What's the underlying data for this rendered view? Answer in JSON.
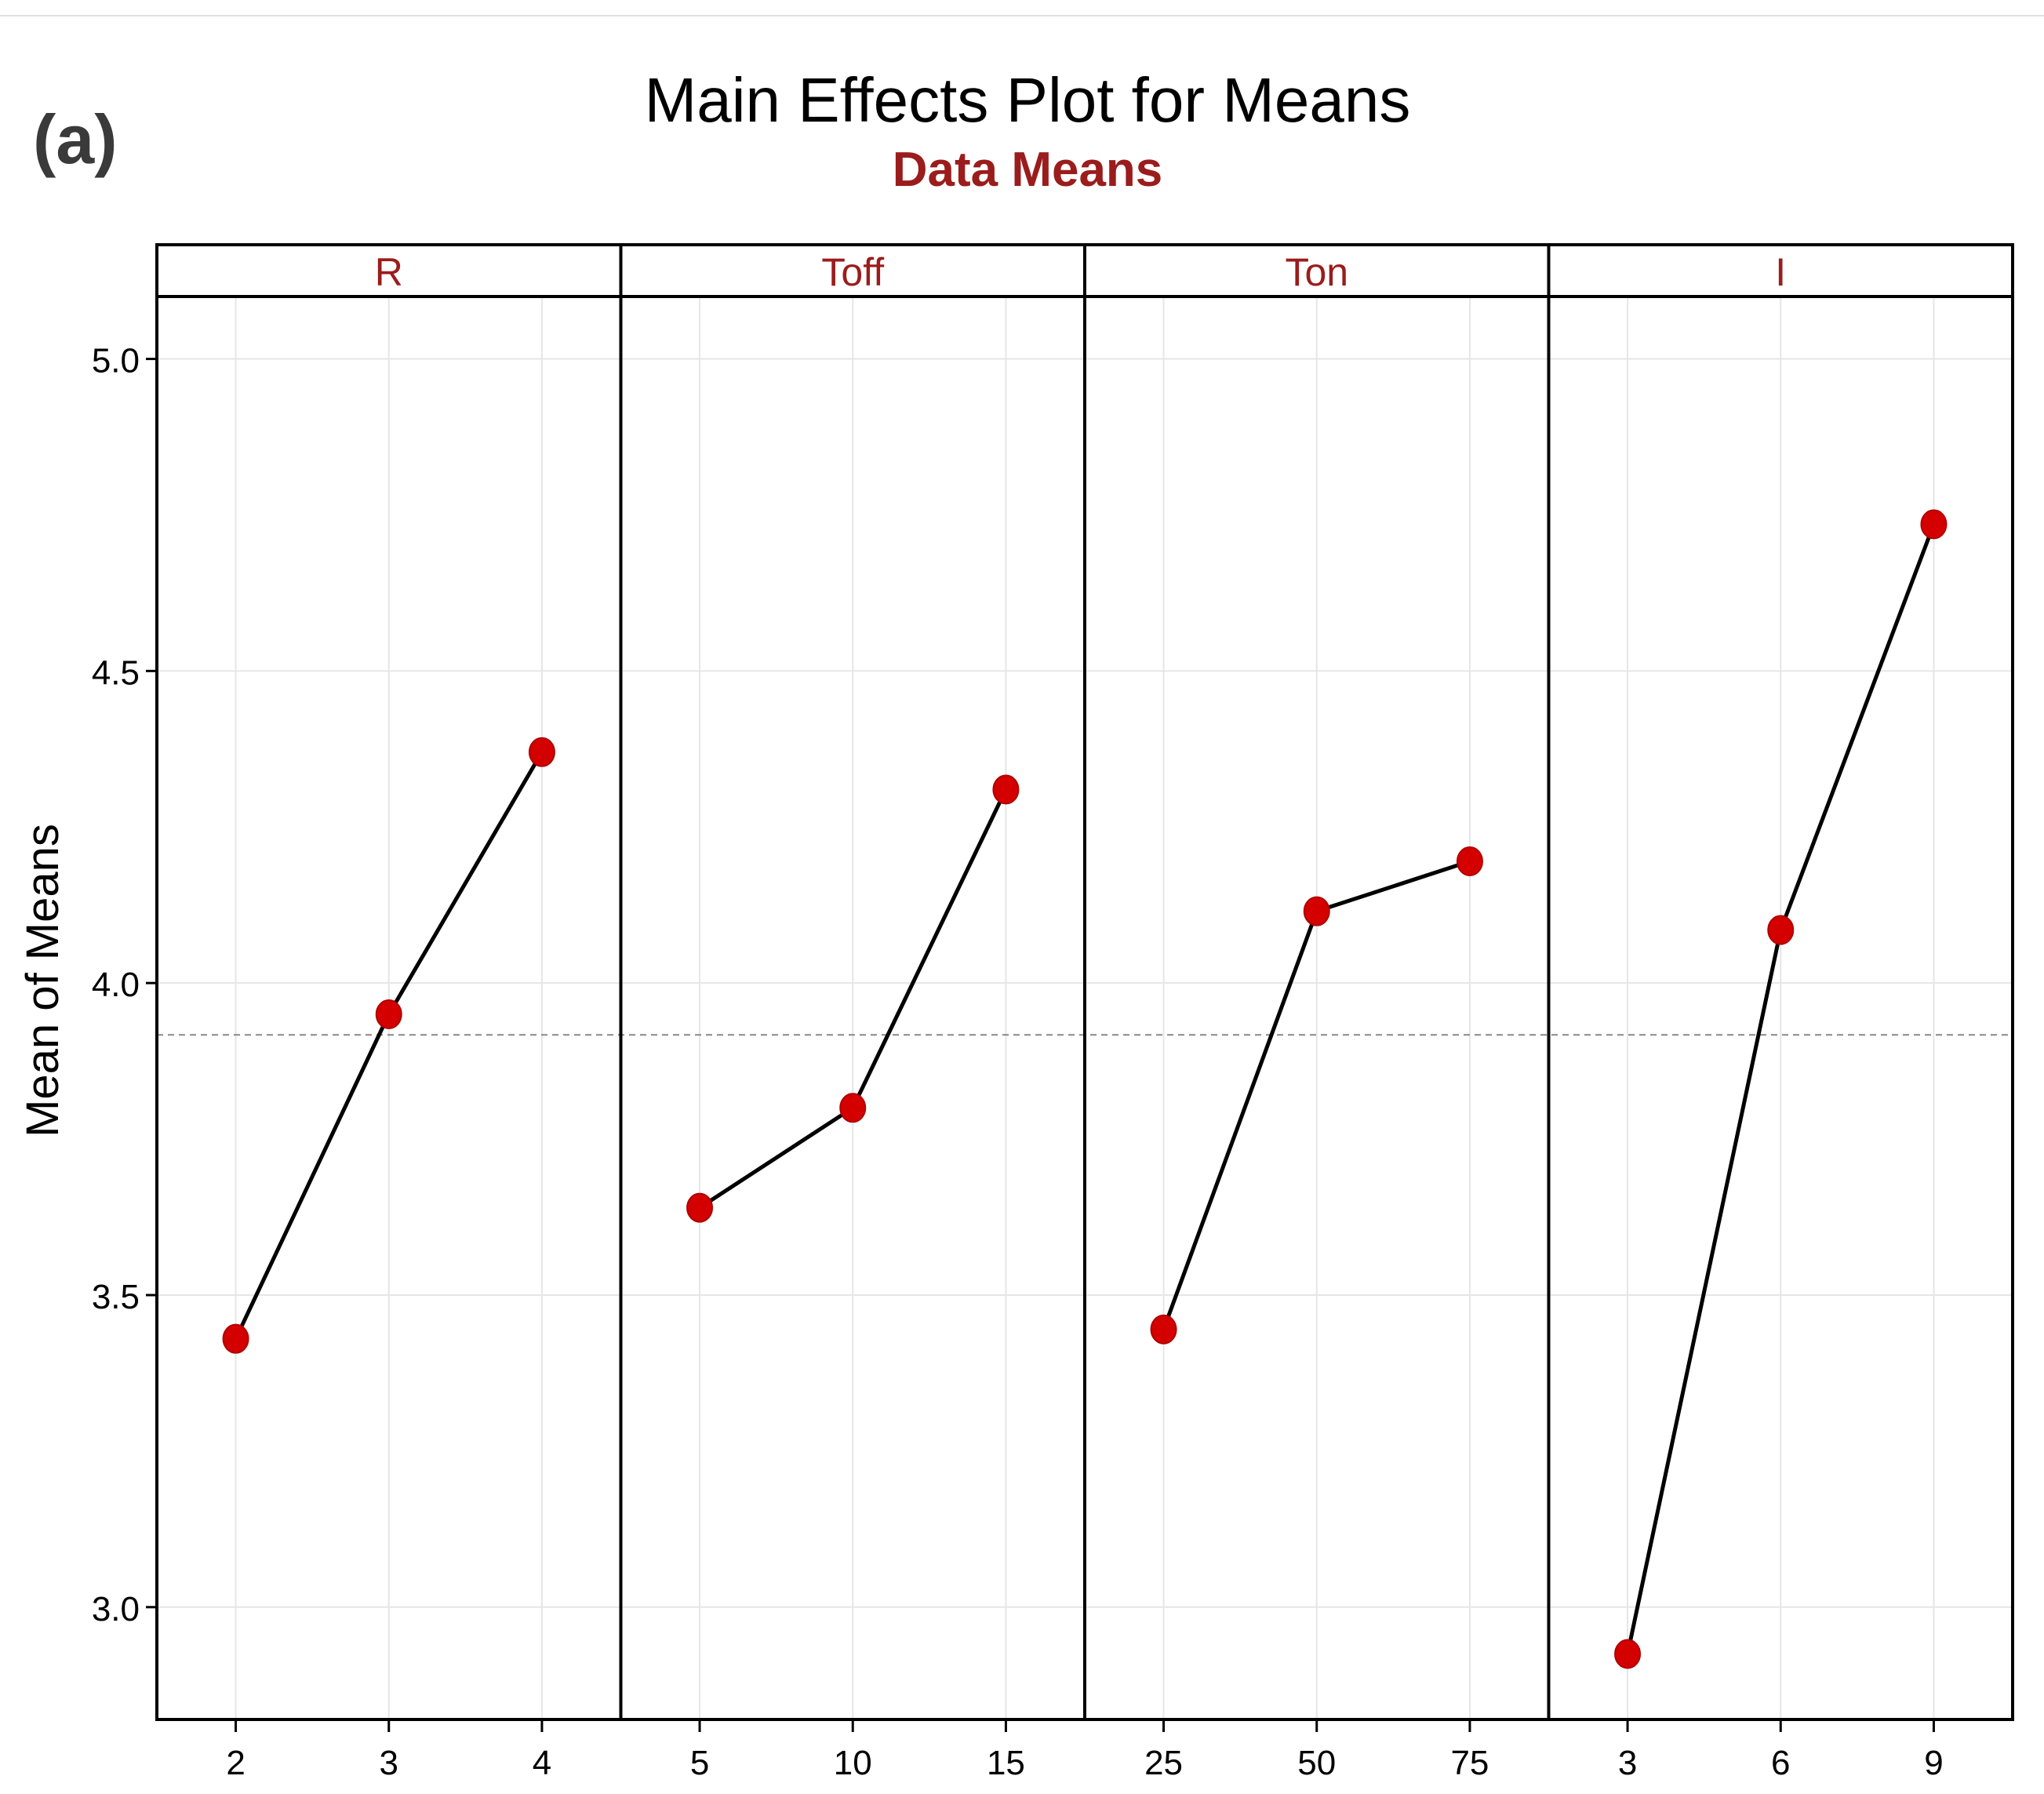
{
  "chart_data": {
    "type": "line",
    "panel_label": "(a)",
    "title": "Main Effects Plot for Means",
    "subtitle": "Data Means",
    "ylabel": "Mean of Means",
    "ylim": [
      2.82,
      5.1
    ],
    "yticks": [
      3.0,
      3.5,
      4.0,
      4.5,
      5.0
    ],
    "ytick_labels": [
      "3.0",
      "3.5",
      "4.0",
      "4.5",
      "5.0"
    ],
    "grand_mean": 3.917,
    "grid": true,
    "panels": [
      {
        "factor": "R",
        "levels": [
          "2",
          "3",
          "4"
        ],
        "values": [
          3.43,
          3.95,
          4.37
        ]
      },
      {
        "factor": "Toff",
        "levels": [
          "5",
          "10",
          "15"
        ],
        "values": [
          3.64,
          3.8,
          4.31
        ]
      },
      {
        "factor": "Ton",
        "levels": [
          "25",
          "50",
          "75"
        ],
        "values": [
          3.445,
          4.115,
          4.195
        ]
      },
      {
        "factor": "I",
        "levels": [
          "3",
          "6",
          "9"
        ],
        "values": [
          2.925,
          4.085,
          4.735
        ]
      }
    ],
    "colors": {
      "point": "#d40000",
      "line": "#000000",
      "strip_text": "#9b1c1c",
      "subtitle": "#9b1c1c",
      "mean_line": "#888888",
      "grid": "#e6e6e6"
    }
  }
}
